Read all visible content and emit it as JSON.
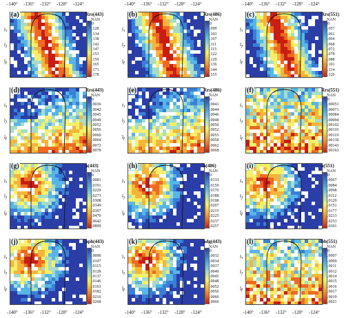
{
  "top_x_ticks": [
    "-140°",
    "-136°",
    "-132°",
    "-128°",
    "-124°"
  ],
  "bottom_x_ticks": [
    "-140°",
    "-136°",
    "-132°",
    "-128°",
    "-124°"
  ],
  "y_ticks": [
    "2°",
    "-2°",
    "-6°"
  ],
  "colors": {
    "scale": [
      "#2b3ea8",
      "#3a7fd6",
      "#56b6e8",
      "#a6dcc8",
      "#f4f06a",
      "#f5b53b",
      "#ee6a23",
      "#c81e12"
    ],
    "nan": "#ffffff",
    "border_line": "#111111"
  },
  "panels": [
    {
      "label": "(a)",
      "title": "Rrs(443)",
      "nan": "NAN",
      "ticks": [
        "0",
        ".128",
        ".134",
        ".138",
        ".142",
        ".147",
        ".153",
        ".159",
        ".165",
        ".171",
        ".178"
      ]
    },
    {
      "label": "(b)",
      "title": "Rrs(486)",
      "nan": "NAN",
      "ticks": [
        "0",
        ".099",
        ".103",
        ".107",
        ".111",
        ".115",
        ".122",
        ".129",
        ".136",
        ".144",
        ".155"
      ]
    },
    {
      "label": "(c)",
      "title": "Rrs(551)",
      "nan": "NAN",
      "ticks": [
        "0",
        ".057",
        ".061",
        ".064",
        ".068",
        ".072",
        ".078",
        ".088",
        ".101",
        ".114",
        ".126"
      ]
    },
    {
      "label": "(d)",
      "title": "Rrs(443)",
      "nan": "NAN",
      "ticks": [
        "0",
        ".0036",
        ".0042",
        ".0045",
        ".0049",
        ".0052",
        ".0056",
        ".0060",
        ".0064",
        ".0072",
        ".0078"
      ]
    },
    {
      "label": "(e)",
      "title": "Rrs(486)",
      "nan": "NAN",
      "ticks": [
        "0",
        ".0041",
        ".0044",
        ".0046",
        ".0048",
        ".0050",
        ".0052",
        ".0055",
        ".0058",
        ".0062",
        ".0068"
      ]
    },
    {
      "label": "(f)",
      "title": "Rrs(551)",
      "nan": "NAN",
      "ticks": [
        "0",
        ".00051",
        ".00071",
        ".00084",
        ".00094",
        ".00102",
        ".00110",
        ".00119",
        ".00130",
        ".00143",
        ".00163"
      ]
    },
    {
      "label": "(g)",
      "title": "a(443)",
      "nan": "NAN",
      "ticks": [
        "0",
        ".0081",
        ".0191",
        ".0229",
        ".0273",
        ".0308",
        ".0349",
        ".0397",
        ".0470",
        ".0642",
        ".0899"
      ]
    },
    {
      "label": "(h)",
      "title": "a(486)",
      "nan": "NAN",
      "ticks": [
        "0",
        ".0133",
        ".0159",
        ".0176",
        ".0188",
        ".0198",
        ".0207",
        ".0215",
        ".0225",
        ".0237",
        ".0257"
      ]
    },
    {
      "label": "(i)",
      "title": "a(551)",
      "nan": "NAN",
      "ticks": [
        "0",
        ".0067",
        ".0084",
        ".0098",
        ".0112",
        ".0129",
        ".0151",
        ".0177",
        ".0213",
        ".0253",
        ".0301"
      ]
    },
    {
      "label": "(j)",
      "title": "aph(443)",
      "nan": "NAN",
      "ticks": [
        "0",
        ".0090",
        ".0107",
        ".0115",
        ".0128",
        ".0137",
        ".0146",
        ".0163",
        ".0182",
        ".0216",
        ".0268"
      ]
    },
    {
      "label": "(k)",
      "title": "adg(443)",
      "nan": "NAN",
      "ticks": [
        "0",
        ".0032",
        ".0034",
        ".0037",
        ".0040",
        ".0045",
        ".0048",
        ".0052",
        ".0056",
        ".0060",
        ".0066"
      ]
    },
    {
      "label": "(l)",
      "title": "bb(551)",
      "nan": "NAN",
      "ticks": [
        "0",
        ".0007",
        ".0009",
        ".0011",
        ".0012",
        ".0014",
        ".0015",
        ".0016",
        ".0017",
        ".0019",
        ".0021"
      ]
    }
  ]
}
